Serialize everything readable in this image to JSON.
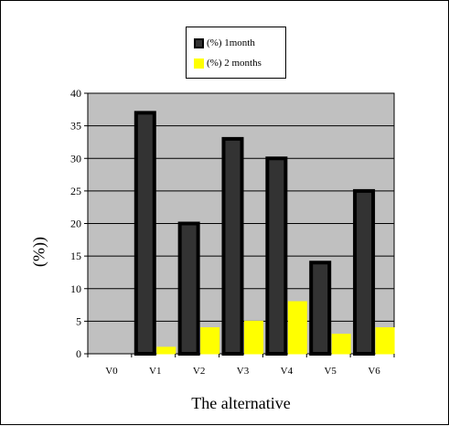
{
  "chart_data": {
    "type": "bar",
    "categories": [
      "V0",
      "V1",
      "V2",
      "V3",
      "V4",
      "V5",
      "V6"
    ],
    "series": [
      {
        "name": "(%) 1month",
        "values": [
          0,
          37,
          20,
          33,
          30,
          14,
          25
        ],
        "color": "#333333"
      },
      {
        "name": "(%) 2 months",
        "values": [
          0,
          1,
          4,
          5,
          8,
          3,
          4
        ],
        "color": "#ffff00"
      }
    ],
    "xlabel": "The alternative",
    "ylabel": "(%))",
    "ylim": [
      0,
      40
    ],
    "yticks": [
      "0",
      "5",
      "10",
      "15",
      "20",
      "25",
      "30",
      "35",
      "40"
    ],
    "grid": true,
    "plot_background": "#c0c0c0",
    "legend_position": "top-center"
  }
}
